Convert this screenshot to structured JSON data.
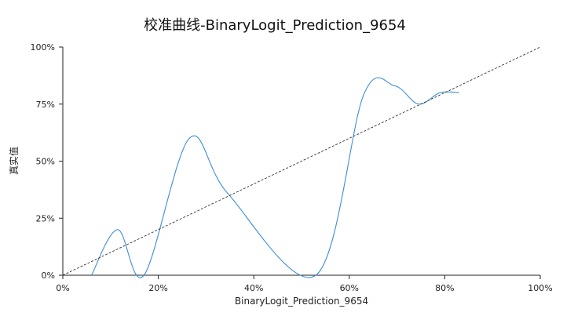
{
  "chart_data": {
    "type": "line",
    "title": "校准曲线-BinaryLogit_Prediction_9654",
    "xlabel": "BinaryLogit_Prediction_9654",
    "ylabel": "真实值",
    "xlim": [
      0,
      1
    ],
    "ylim": [
      0,
      1
    ],
    "x_ticks": [
      "0%",
      "20%",
      "40%",
      "60%",
      "80%",
      "100%"
    ],
    "y_ticks": [
      "0%",
      "25%",
      "50%",
      "75%",
      "100%"
    ],
    "grid": false,
    "legend": "none",
    "series": [
      {
        "style": "solid",
        "color": "#3b8fd6",
        "x": [
          0.06,
          0.115,
          0.17,
          0.265,
          0.345,
          0.53,
          0.63,
          0.695,
          0.745,
          0.79,
          0.83
        ],
        "y": [
          0.0,
          0.2,
          0.0,
          0.6,
          0.36,
          0.0,
          0.79,
          0.83,
          0.75,
          0.8,
          0.8
        ]
      },
      {
        "style": "dashed",
        "color": "#333333",
        "x": [
          0,
          1
        ],
        "y": [
          0,
          1
        ]
      }
    ]
  }
}
